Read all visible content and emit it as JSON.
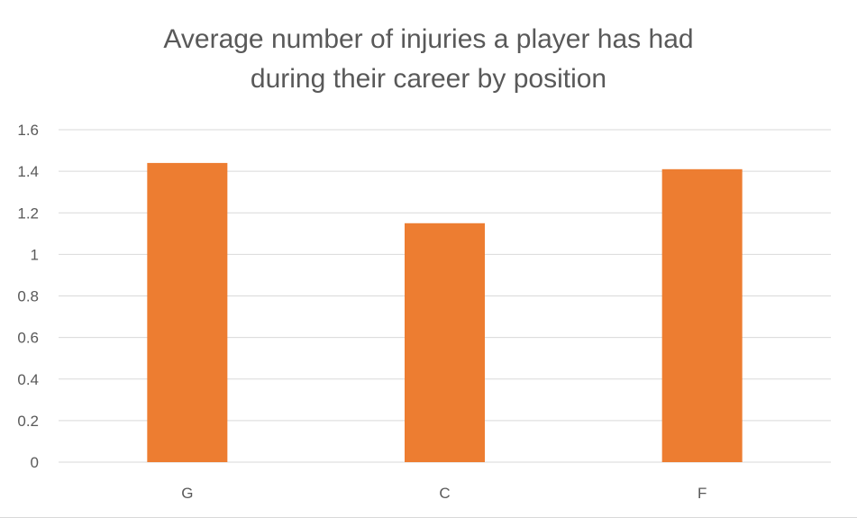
{
  "chart_data": {
    "type": "bar",
    "title_lines": [
      "Average number of injuries a player has had",
      "during their career by position"
    ],
    "title": "Average number of injuries a player has had during their career by position",
    "xlabel": "",
    "ylabel": "",
    "categories": [
      "G",
      "C",
      "F"
    ],
    "values": [
      1.44,
      1.15,
      1.41
    ],
    "ylim": [
      0,
      1.6
    ],
    "y_ticks": [
      "0",
      "0.2",
      "0.4",
      "0.6",
      "0.8",
      "1",
      "1.2",
      "1.4",
      "1.6"
    ],
    "grid": true,
    "legend": "none",
    "bar_color": "#ED7D31",
    "grid_color": "#D9D9D9",
    "text_color": "#595959"
  }
}
